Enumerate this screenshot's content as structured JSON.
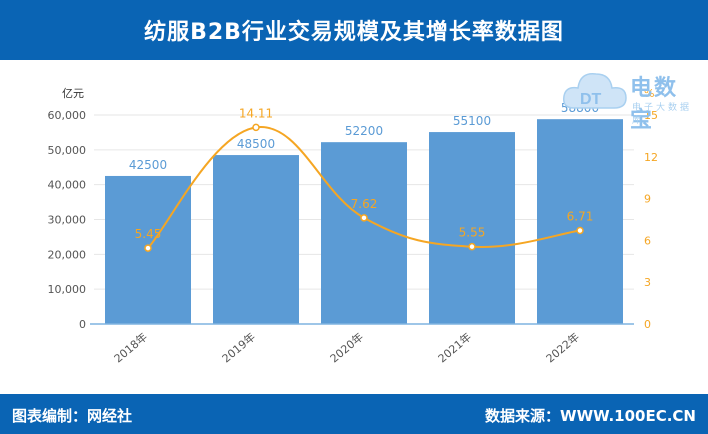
{
  "header": {
    "title": "纺服B2B行业交易规模及其增长率数据图"
  },
  "footer": {
    "left": "图表编制：网经社",
    "right": "数据来源：WWW.100EC.CN"
  },
  "logo": {
    "brand": "电数宝",
    "sub": "电子大数据库",
    "icon": "cloud-dt-icon"
  },
  "colors": {
    "header_bg": "#0a64b4",
    "bar": "#5b9bd5",
    "line": "#f5a623",
    "bar_label": "#5b9bd5",
    "line_label": "#f5a623"
  },
  "chart_data": {
    "type": "bar",
    "title": "纺服B2B行业交易规模及其增长率数据图",
    "categories": [
      "2018年",
      "2019年",
      "2020年",
      "2021年",
      "2022年"
    ],
    "series": [
      {
        "values": [
          42500,
          48500,
          52200,
          55100,
          58800
        ],
        "type": "bar",
        "axis": "left"
      },
      {
        "values": [
          5.45,
          14.11,
          7.62,
          5.55,
          6.71
        ],
        "type": "line",
        "axis": "right"
      }
    ],
    "ylabel": "亿元",
    "ylabel_right": "%",
    "ylim": [
      0,
      60000
    ],
    "ylim_right": [
      0,
      15
    ],
    "yticks": [
      "0",
      "10,000",
      "20,000",
      "30,000",
      "40,000",
      "50,000",
      "60,000"
    ],
    "yticks_right": [
      "0",
      "3",
      "6",
      "9",
      "12",
      "15"
    ],
    "bar_labels": [
      "42500",
      "48500",
      "52200",
      "55100",
      "58800"
    ],
    "line_labels": [
      "5.45",
      "14.11",
      "7.62",
      "5.55",
      "6.71"
    ],
    "grid": true
  }
}
